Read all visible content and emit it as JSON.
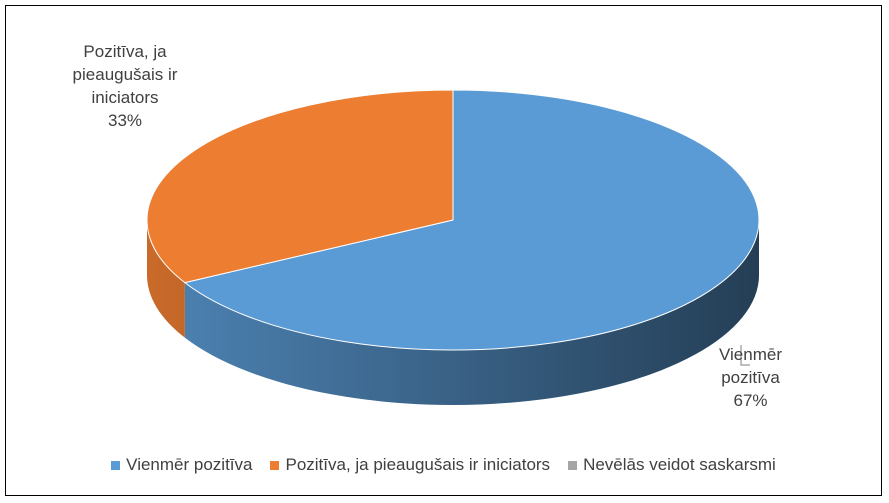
{
  "chart_data": {
    "type": "pie",
    "style": "3d",
    "categories": [
      "Vienmēr pozitīva",
      "Pozitīva, ja pieaugušais ir iniciators",
      "Nevēlās veidot saskarsmi"
    ],
    "values": [
      67,
      33,
      0
    ],
    "value_labels": [
      "67%",
      "33%",
      null
    ],
    "colors": [
      "#5b9bd5",
      "#ed7d31",
      "#a5a5a5"
    ],
    "legend": "bottom"
  }
}
